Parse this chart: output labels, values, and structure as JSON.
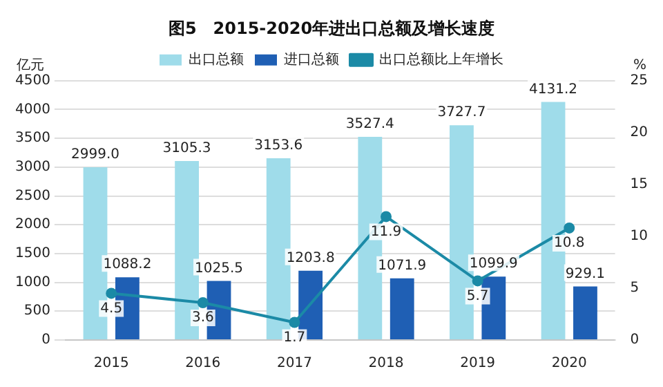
{
  "chart_data": {
    "type": "bar",
    "title": "图5　2015-2020年进出口总额及增长速度",
    "ylabel": "亿元",
    "y2label": "%",
    "categories": [
      "2015",
      "2016",
      "2017",
      "2018",
      "2019",
      "2020"
    ],
    "series": [
      {
        "name": "出口总额",
        "color": "#9fdcea",
        "values": [
          2999.0,
          3105.3,
          3153.6,
          3527.4,
          3727.7,
          4131.2
        ],
        "value_labels": [
          "2999.0",
          "3105.3",
          "3153.6",
          "3527.4",
          "3727.7",
          "4131.2"
        ]
      },
      {
        "name": "进口总额",
        "color": "#1f5fb4",
        "values": [
          1088.2,
          1025.5,
          1203.8,
          1071.9,
          1099.9,
          929.1
        ],
        "value_labels": [
          "1088.2",
          "1025.5",
          "1203.8",
          "1071.9",
          "1099.9",
          "929.1"
        ]
      },
      {
        "name": "出口总额比上年增长",
        "type": "line",
        "axis": "y2",
        "color": "#1b8aa6",
        "values": [
          4.5,
          3.6,
          1.7,
          11.9,
          5.7,
          10.8
        ],
        "value_labels": [
          "4.5",
          "3.6",
          "1.7",
          "11.9",
          "5.7",
          "10.8"
        ]
      }
    ],
    "ylim": [
      0,
      4500
    ],
    "yticks": [
      0,
      500,
      1000,
      1500,
      2000,
      2500,
      3000,
      3500,
      4000,
      4500
    ],
    "y2lim": [
      0,
      25
    ],
    "y2ticks": [
      0,
      5,
      10,
      15,
      20,
      25
    ],
    "grid": "y",
    "legend": "top",
    "marker": "circle"
  }
}
